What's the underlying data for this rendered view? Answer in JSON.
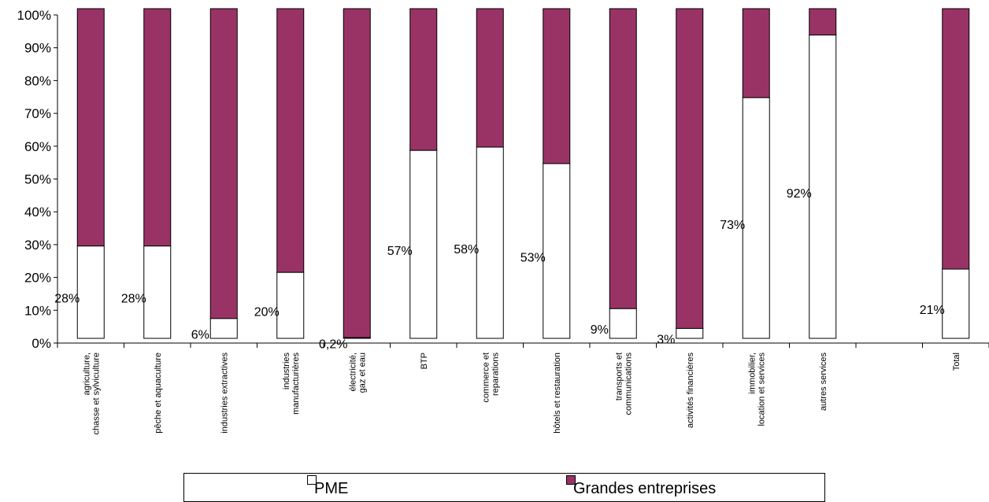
{
  "chart_data": {
    "type": "bar",
    "stacked": true,
    "percent_stacked": true,
    "categories": [
      "agriculture, chasse et sylviculture",
      "pêche et aquaculture",
      "industries extractives",
      "industries manufacturières",
      "électricité, gaz et eau",
      "BTP",
      "commerce et reparations",
      "hôtels et restauration",
      "transports et communications",
      "activités financières",
      "immobilier, location et services",
      "autres services",
      "",
      "Total"
    ],
    "series": [
      {
        "name": "PME",
        "color": "#ffffff",
        "values": [
          28,
          28,
          6,
          20,
          0.2,
          57,
          58,
          53,
          9,
          3,
          73,
          92,
          null,
          21
        ],
        "labels": [
          "28%",
          "28%",
          "6%",
          "20%",
          "0,2%",
          "57%",
          "58%",
          "53%",
          "9%",
          "3%",
          "73%",
          "92%",
          "",
          "21%"
        ]
      },
      {
        "name": "Grandes entreprises",
        "color": "#993366",
        "values": [
          72,
          72,
          94,
          80,
          99.8,
          43,
          42,
          47,
          91,
          97,
          27,
          8,
          null,
          79
        ]
      }
    ],
    "y_ticks": [
      "0%",
      "10%",
      "20%",
      "30%",
      "40%",
      "50%",
      "60%",
      "70%",
      "80%",
      "90%",
      "100%"
    ],
    "ylim": [
      0,
      100
    ],
    "grid": false,
    "legend_position": "bottom"
  }
}
